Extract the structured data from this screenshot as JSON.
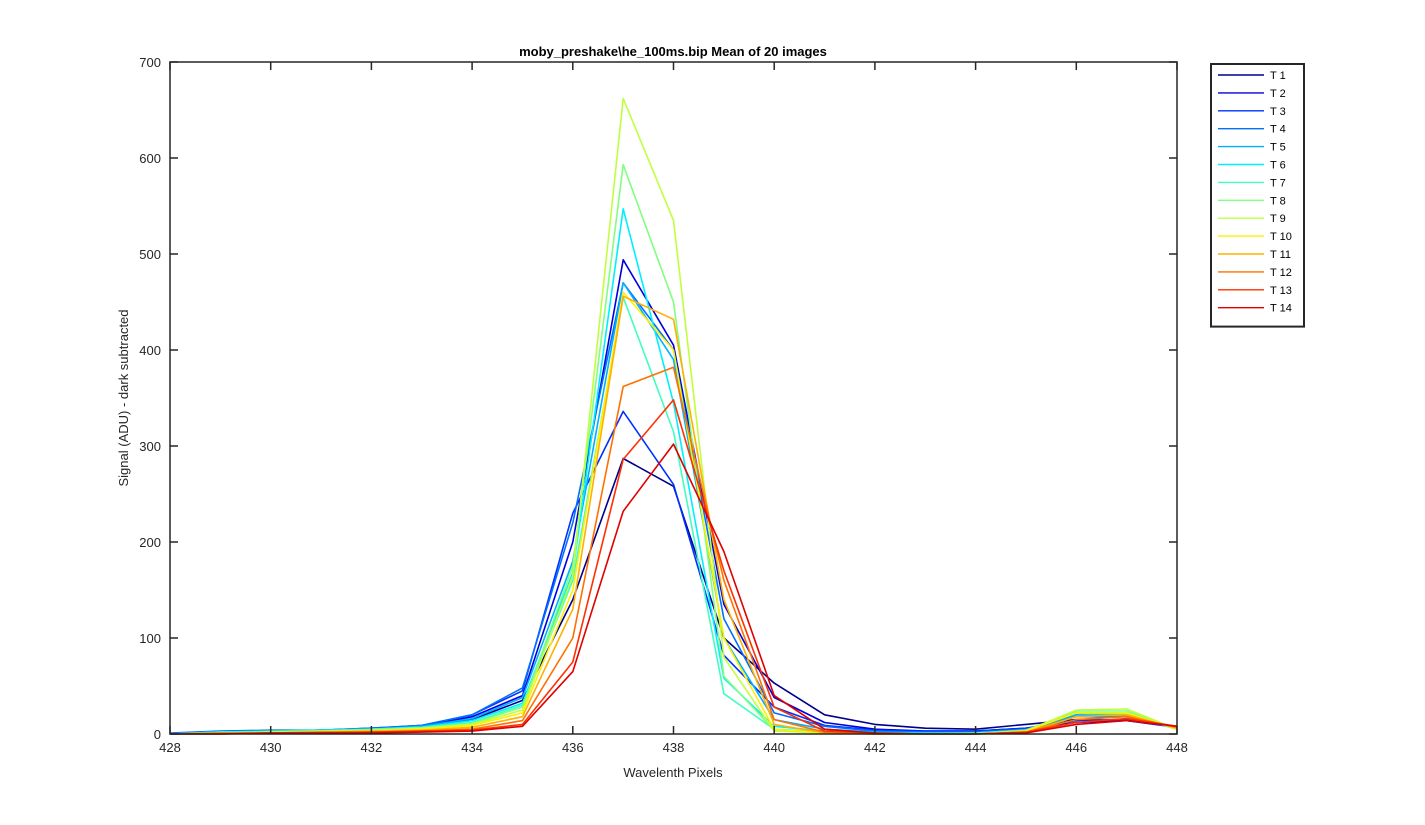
{
  "chart_data": {
    "type": "line",
    "title": "moby_preshake\\he_100ms.bip  Mean of 20 images",
    "xlabel": "Wavelenth Pixels",
    "ylabel": "Signal (ADU) - dark subtracted",
    "xlim": [
      428,
      448
    ],
    "ylim": [
      0,
      700
    ],
    "xticks": [
      428,
      430,
      432,
      434,
      436,
      438,
      440,
      442,
      444,
      446,
      448
    ],
    "yticks": [
      0,
      100,
      200,
      300,
      400,
      500,
      600,
      700
    ],
    "legend_position": "outside-top-right",
    "x": [
      428,
      429,
      430,
      431,
      432,
      433,
      434,
      435,
      436,
      437,
      438,
      439,
      440,
      441,
      442,
      443,
      444,
      445,
      446,
      447,
      448
    ],
    "series": [
      {
        "name": "T 1",
        "color": "#00008f",
        "values": [
          0,
          2,
          3,
          4,
          5,
          8,
          15,
          35,
          140,
          287,
          258,
          100,
          53,
          20,
          10,
          6,
          5,
          10,
          15,
          14,
          8
        ]
      },
      {
        "name": "T 2",
        "color": "#0000df",
        "values": [
          0,
          2,
          3,
          4,
          5,
          8,
          18,
          40,
          200,
          494,
          405,
          135,
          38,
          12,
          5,
          3,
          3,
          6,
          12,
          14,
          7
        ]
      },
      {
        "name": "T 3",
        "color": "#0030ff",
        "values": [
          0,
          2,
          3,
          4,
          6,
          9,
          20,
          45,
          230,
          336,
          260,
          82,
          28,
          9,
          4,
          3,
          3,
          6,
          14,
          15,
          7
        ]
      },
      {
        "name": "T 4",
        "color": "#0070ff",
        "values": [
          1,
          3,
          4,
          4,
          6,
          9,
          20,
          48,
          220,
          470,
          400,
          120,
          22,
          8,
          3,
          2,
          2,
          5,
          18,
          18,
          6
        ]
      },
      {
        "name": "T 5",
        "color": "#00b0ff",
        "values": [
          0,
          2,
          3,
          4,
          5,
          8,
          16,
          38,
          180,
          470,
          390,
          100,
          15,
          5,
          2,
          1,
          1,
          4,
          20,
          19,
          6
        ]
      },
      {
        "name": "T 6",
        "color": "#00efff",
        "values": [
          0,
          2,
          3,
          4,
          5,
          7,
          14,
          32,
          168,
          547,
          345,
          58,
          8,
          3,
          1,
          1,
          1,
          4,
          22,
          20,
          5
        ]
      },
      {
        "name": "T 7",
        "color": "#40ffbf",
        "values": [
          0,
          2,
          2,
          3,
          5,
          7,
          12,
          30,
          160,
          455,
          315,
          42,
          5,
          2,
          1,
          0,
          1,
          4,
          22,
          22,
          5
        ]
      },
      {
        "name": "T 8",
        "color": "#80ff80",
        "values": [
          0,
          1,
          2,
          3,
          4,
          6,
          11,
          28,
          175,
          593,
          450,
          60,
          4,
          2,
          0,
          0,
          0,
          4,
          24,
          24,
          5
        ]
      },
      {
        "name": "T 9",
        "color": "#c0ff40",
        "values": [
          0,
          1,
          2,
          3,
          4,
          6,
          10,
          25,
          165,
          662,
          535,
          80,
          3,
          1,
          0,
          0,
          0,
          3,
          25,
          26,
          5
        ]
      },
      {
        "name": "T 10",
        "color": "#ffef00",
        "values": [
          0,
          1,
          2,
          2,
          3,
          5,
          9,
          22,
          150,
          460,
          400,
          100,
          5,
          1,
          0,
          0,
          0,
          3,
          22,
          22,
          5
        ]
      },
      {
        "name": "T 11",
        "color": "#ffb000",
        "values": [
          0,
          1,
          1,
          2,
          3,
          4,
          7,
          18,
          130,
          456,
          432,
          140,
          10,
          1,
          0,
          0,
          0,
          2,
          18,
          20,
          6
        ]
      },
      {
        "name": "T 12",
        "color": "#ff7000",
        "values": [
          0,
          1,
          1,
          2,
          2,
          3,
          5,
          14,
          100,
          362,
          382,
          160,
          15,
          2,
          0,
          0,
          0,
          2,
          15,
          18,
          7
        ]
      },
      {
        "name": "T 13",
        "color": "#ff3000",
        "values": [
          0,
          0,
          1,
          1,
          2,
          3,
          4,
          10,
          75,
          286,
          348,
          170,
          28,
          3,
          1,
          0,
          0,
          2,
          12,
          16,
          8
        ]
      },
      {
        "name": "T 14",
        "color": "#df0000",
        "values": [
          0,
          0,
          1,
          1,
          1,
          2,
          3,
          8,
          65,
          232,
          302,
          190,
          40,
          5,
          1,
          0,
          0,
          1,
          10,
          14,
          8
        ]
      }
    ]
  }
}
